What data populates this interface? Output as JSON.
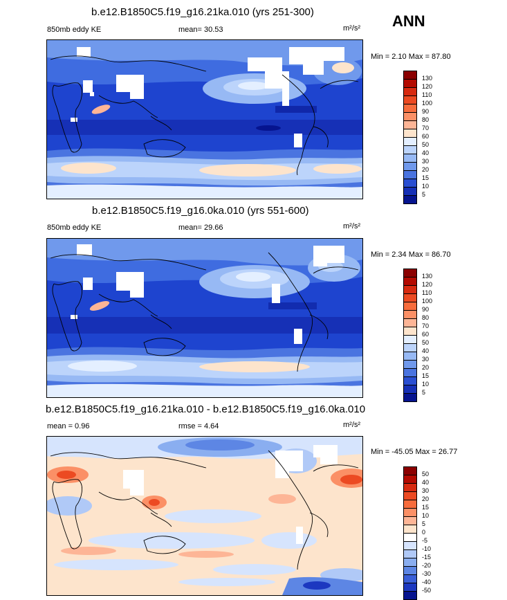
{
  "season": "ANN",
  "panels": [
    {
      "title": "b.e12.B1850C5.f19_g16.21ka.010 (yrs 251-300)",
      "left_label": "850mb eddy KE",
      "center_label": "mean=  30.53",
      "units": "m²/s²",
      "minmax": "Min =   2.10 Max =  87.80",
      "colorbar_labels": [
        "130",
        "120",
        "110",
        "100",
        "90",
        "80",
        "70",
        "60",
        "50",
        "40",
        "30",
        "20",
        "15",
        "10",
        "5"
      ],
      "colorbar_colors": [
        "#8b0000",
        "#b30a00",
        "#d72a10",
        "#ec4a22",
        "#f76c3c",
        "#fb9066",
        "#fdb596",
        "#fde4cc",
        "#e4efff",
        "#bcd4fb",
        "#97b9f4",
        "#7099ec",
        "#4a74e0",
        "#2a4fd2",
        "#1630b6",
        "#06148f"
      ]
    },
    {
      "title": "b.e12.B1850C5.f19_g16.0ka.010 (yrs 551-600)",
      "left_label": "850mb eddy KE",
      "center_label": "mean=  29.66",
      "units": "m²/s²",
      "minmax": "Min =   2.34 Max =  86.70",
      "colorbar_labels": [
        "130",
        "120",
        "110",
        "100",
        "90",
        "80",
        "70",
        "60",
        "50",
        "40",
        "30",
        "20",
        "15",
        "10",
        "5"
      ],
      "colorbar_colors": [
        "#8b0000",
        "#b30a00",
        "#d72a10",
        "#ec4a22",
        "#f76c3c",
        "#fb9066",
        "#fdb596",
        "#fde4cc",
        "#e4efff",
        "#bcd4fb",
        "#97b9f4",
        "#7099ec",
        "#4a74e0",
        "#2a4fd2",
        "#1630b6",
        "#06148f"
      ]
    },
    {
      "title": "b.e12.B1850C5.f19_g16.21ka.010 - b.e12.B1850C5.f19_g16.0ka.010",
      "left_label": "mean =   0.96",
      "center_label": "rmse =   4.64",
      "units": "m²/s²",
      "minmax": "Min = -45.05 Max =  26.77",
      "colorbar_labels": [
        "50",
        "40",
        "30",
        "20",
        "15",
        "10",
        "5",
        "0",
        "-5",
        "-10",
        "-15",
        "-20",
        "-30",
        "-40",
        "-50"
      ],
      "colorbar_colors": [
        "#8b0000",
        "#b30a00",
        "#d72a10",
        "#ec4a22",
        "#f76c3c",
        "#fb9066",
        "#fdb596",
        "#fde4cc",
        "#ffffff",
        "#d6e4fd",
        "#b0c9f7",
        "#8aaef0",
        "#5d86e4",
        "#3a5fd8",
        "#1c38c0",
        "#06148f"
      ]
    }
  ]
}
